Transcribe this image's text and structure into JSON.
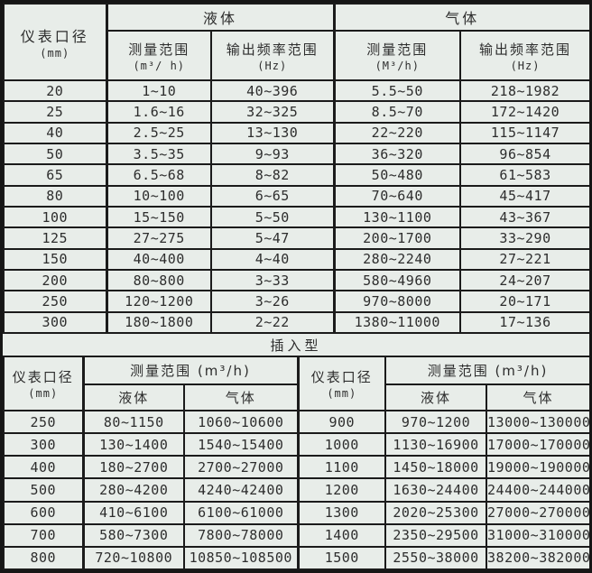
{
  "colors": {
    "background": "#e8ede9",
    "border": "#1b1b1b",
    "text": "#2d2d2d"
  },
  "top_table": {
    "diameter_header": {
      "line1": "仪表口径",
      "line2": "(mm)"
    },
    "liquid_header": "液体",
    "gas_header": "气体",
    "sub_headers": {
      "range_label": "测量范围",
      "liquid_range_unit": "(m³/ h)",
      "gas_range_unit": "(M³/h)",
      "freq_label": "输出频率范围",
      "freq_unit": "(Hz)"
    },
    "rows": [
      {
        "dn": "20",
        "liquid_range": "1~10",
        "liquid_freq": "40~396",
        "gas_range": "5.5~50",
        "gas_freq": "218~1982"
      },
      {
        "dn": "25",
        "liquid_range": "1.6~16",
        "liquid_freq": "32~325",
        "gas_range": "8.5~70",
        "gas_freq": "172~1420"
      },
      {
        "dn": "40",
        "liquid_range": "2.5~25",
        "liquid_freq": "13~130",
        "gas_range": "22~220",
        "gas_freq": "115~1147"
      },
      {
        "dn": "50",
        "liquid_range": "3.5~35",
        "liquid_freq": "9~93",
        "gas_range": "36~320",
        "gas_freq": "96~854"
      },
      {
        "dn": "65",
        "liquid_range": "6.5~68",
        "liquid_freq": "8~82",
        "gas_range": "50~480",
        "gas_freq": "61~583"
      },
      {
        "dn": "80",
        "liquid_range": "10~100",
        "liquid_freq": "6~65",
        "gas_range": "70~640",
        "gas_freq": "45~417"
      },
      {
        "dn": "100",
        "liquid_range": "15~150",
        "liquid_freq": "5~50",
        "gas_range": "130~1100",
        "gas_freq": "43~367"
      },
      {
        "dn": "125",
        "liquid_range": "27~275",
        "liquid_freq": "5~47",
        "gas_range": "200~1700",
        "gas_freq": "33~290"
      },
      {
        "dn": "150",
        "liquid_range": "40~400",
        "liquid_freq": "4~40",
        "gas_range": "280~2240",
        "gas_freq": "27~221"
      },
      {
        "dn": "200",
        "liquid_range": "80~800",
        "liquid_freq": "3~33",
        "gas_range": "580~4960",
        "gas_freq": "24~207"
      },
      {
        "dn": "250",
        "liquid_range": "120~1200",
        "liquid_freq": "3~26",
        "gas_range": "970~8000",
        "gas_freq": "20~171"
      },
      {
        "dn": "300",
        "liquid_range": "180~1800",
        "liquid_freq": "2~22",
        "gas_range": "1380~11000",
        "gas_freq": "17~136"
      }
    ]
  },
  "insertion_section": {
    "title": "插入型",
    "diameter_header": {
      "line1": "仪表口径",
      "line2": "(mm)"
    },
    "range_header": "测量范围 (m³/h)",
    "liquid_label": "液体",
    "gas_label": "气体",
    "rows": [
      {
        "dn_left": "250",
        "liquid_left": "80~1150",
        "gas_left": "1060~10600",
        "dn_right": "900",
        "liquid_right": "970~1200",
        "gas_right": "13000~130000"
      },
      {
        "dn_left": "300",
        "liquid_left": "130~1400",
        "gas_left": "1540~15400",
        "dn_right": "1000",
        "liquid_right": "1130~16900",
        "gas_right": "17000~170000"
      },
      {
        "dn_left": "400",
        "liquid_left": "180~2700",
        "gas_left": "2700~27000",
        "dn_right": "1100",
        "liquid_right": "1450~18000",
        "gas_right": "19000~190000"
      },
      {
        "dn_left": "500",
        "liquid_left": "280~4200",
        "gas_left": "4240~42400",
        "dn_right": "1200",
        "liquid_right": "1630~24400",
        "gas_right": "24400~244000"
      },
      {
        "dn_left": "600",
        "liquid_left": "410~6100",
        "gas_left": "6100~61000",
        "dn_right": "1300",
        "liquid_right": "2020~25300",
        "gas_right": "27000~270000"
      },
      {
        "dn_left": "700",
        "liquid_left": "580~7300",
        "gas_left": "7800~78000",
        "dn_right": "1400",
        "liquid_right": "2350~29500",
        "gas_right": "31000~310000"
      },
      {
        "dn_left": "800",
        "liquid_left": "720~10800",
        "gas_left": "10850~108500",
        "dn_right": "1500",
        "liquid_right": "2550~38000",
        "gas_right": "38200~382000"
      }
    ]
  }
}
